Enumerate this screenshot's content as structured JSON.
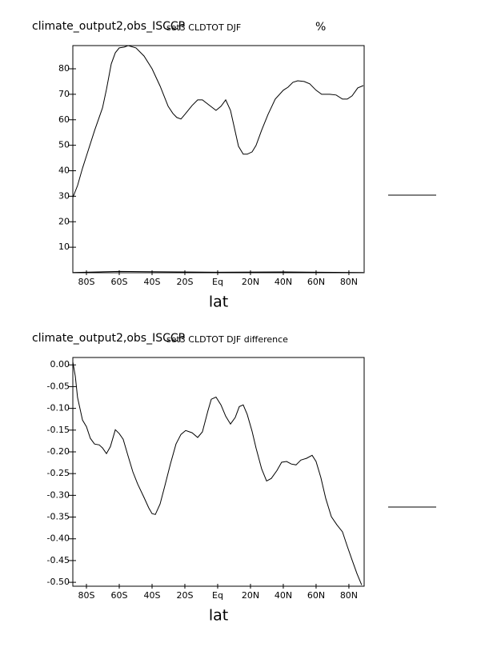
{
  "chart_data": [
    {
      "type": "line",
      "title": "climate_output2,obs_ISCCP",
      "subtitle": "set3 CLDTOT DJF",
      "units": "%",
      "xlabel": "lat",
      "xlim": [
        -88.3,
        89.3
      ],
      "ylim": [
        0,
        89.1
      ],
      "xticks": [
        {
          "value": -80,
          "label": "80S"
        },
        {
          "value": -60,
          "label": "60S"
        },
        {
          "value": -40,
          "label": "40S"
        },
        {
          "value": -20,
          "label": "20S"
        },
        {
          "value": 0,
          "label": "Eq"
        },
        {
          "value": 20,
          "label": "20N"
        },
        {
          "value": 40,
          "label": "40N"
        },
        {
          "value": 60,
          "label": "60N"
        },
        {
          "value": 80,
          "label": "80N"
        }
      ],
      "yticks": [
        10,
        20,
        30,
        40,
        50,
        60,
        70,
        80
      ],
      "series": [
        {
          "color": "#000000",
          "x": [
            -88.3,
            -85.4,
            -82.4,
            -80,
            -75,
            -70.2,
            -67.8,
            -64.9,
            -62.4,
            -60,
            -57,
            -54.6,
            -49.8,
            -44.9,
            -40,
            -35,
            -30.2,
            -27.3,
            -24.9,
            -22.4,
            -20,
            -15.6,
            -12.2,
            -9.3,
            -4.9,
            -1,
            2,
            4.9,
            7.8,
            10.2,
            12.7,
            15.6,
            18,
            21,
            23.4,
            26.8,
            30.7,
            35.1,
            40,
            42.9,
            45.9,
            48.8,
            52.7,
            56.1,
            60,
            63.4,
            68.3,
            72.2,
            76.1,
            79,
            82,
            85.4,
            88.8
          ],
          "values": [
            29.5,
            34.2,
            41,
            45.8,
            55.9,
            64.7,
            71.9,
            81.9,
            86.3,
            88.2,
            88.5,
            89.1,
            88.2,
            85,
            80,
            73.1,
            65.3,
            62.5,
            60.9,
            60.3,
            62.1,
            65.6,
            67.8,
            67.8,
            65.6,
            63.7,
            65.3,
            67.8,
            63.7,
            56.8,
            49.6,
            46.5,
            46.5,
            47.4,
            49.9,
            55.9,
            62.1,
            68.1,
            71.6,
            72.8,
            74.7,
            75.3,
            75,
            74.1,
            71.6,
            70,
            70,
            69.7,
            68.1,
            68.1,
            69.4,
            72.5,
            73.4
          ]
        },
        {
          "color": "#000000",
          "x": [
            -88.3,
            -60,
            -40,
            0,
            40,
            88.8
          ],
          "values": [
            0.1,
            0.5,
            0.4,
            0.2,
            0.3,
            0.1
          ]
        }
      ]
    },
    {
      "type": "line",
      "title": "climate_output2,obs_ISCCP",
      "subtitle": "set3 CLDTOT DJF difference",
      "xlabel": "lat",
      "xlim": [
        -88.3,
        89.3
      ],
      "ylim": [
        -0.509,
        0.017
      ],
      "xticks": [
        {
          "value": -80,
          "label": "80S"
        },
        {
          "value": -60,
          "label": "60S"
        },
        {
          "value": -40,
          "label": "40S"
        },
        {
          "value": -20,
          "label": "20S"
        },
        {
          "value": 0,
          "label": "Eq"
        },
        {
          "value": 20,
          "label": "20N"
        },
        {
          "value": 40,
          "label": "40N"
        },
        {
          "value": 60,
          "label": "60N"
        },
        {
          "value": 80,
          "label": "80N"
        }
      ],
      "yticks": [
        {
          "value": 0,
          "label": "0.00"
        },
        -0.05,
        {
          "value": -0.1,
          "label": "-0.10"
        },
        -0.15,
        {
          "value": -0.2,
          "label": "-0.20"
        },
        -0.25,
        {
          "value": -0.3,
          "label": "-0.30"
        },
        -0.35,
        {
          "value": -0.4,
          "label": "-0.40"
        },
        -0.45,
        {
          "value": -0.5,
          "label": "-0.50"
        }
      ],
      "series": [
        {
          "color": "#000000",
          "x": [
            -88.3,
            -86.8,
            -85.4,
            -82.4,
            -80,
            -77.6,
            -75.1,
            -72.2,
            -70.2,
            -67.8,
            -65.4,
            -62.4,
            -60,
            -57.6,
            -54.6,
            -51.7,
            -48.8,
            -44.9,
            -42,
            -40,
            -38,
            -35.1,
            -32.2,
            -28.8,
            -25.4,
            -22.4,
            -19.5,
            -15.6,
            -12.2,
            -9.3,
            -5.9,
            -3.9,
            -1,
            2,
            4.9,
            7.8,
            10.7,
            13.2,
            15.6,
            18,
            21,
            23.4,
            26.8,
            29.8,
            32.7,
            36.1,
            39,
            42,
            44.9,
            47.8,
            50.7,
            54.1,
            57.6,
            60,
            62.9,
            65.9,
            69.3,
            72.7,
            76.1,
            79,
            82,
            84.9,
            87.8
          ],
          "values": [
            0.007,
            -0.026,
            -0.075,
            -0.127,
            -0.142,
            -0.169,
            -0.182,
            -0.184,
            -0.191,
            -0.204,
            -0.188,
            -0.149,
            -0.158,
            -0.171,
            -0.21,
            -0.246,
            -0.274,
            -0.305,
            -0.329,
            -0.342,
            -0.344,
            -0.32,
            -0.278,
            -0.228,
            -0.182,
            -0.16,
            -0.151,
            -0.156,
            -0.167,
            -0.154,
            -0.105,
            -0.079,
            -0.074,
            -0.092,
            -0.118,
            -0.136,
            -0.121,
            -0.096,
            -0.092,
            -0.114,
            -0.153,
            -0.191,
            -0.239,
            -0.267,
            -0.261,
            -0.243,
            -0.224,
            -0.222,
            -0.228,
            -0.23,
            -0.219,
            -0.215,
            -0.208,
            -0.222,
            -0.259,
            -0.307,
            -0.349,
            -0.368,
            -0.384,
            -0.417,
            -0.449,
            -0.48,
            -0.506
          ]
        }
      ]
    }
  ]
}
